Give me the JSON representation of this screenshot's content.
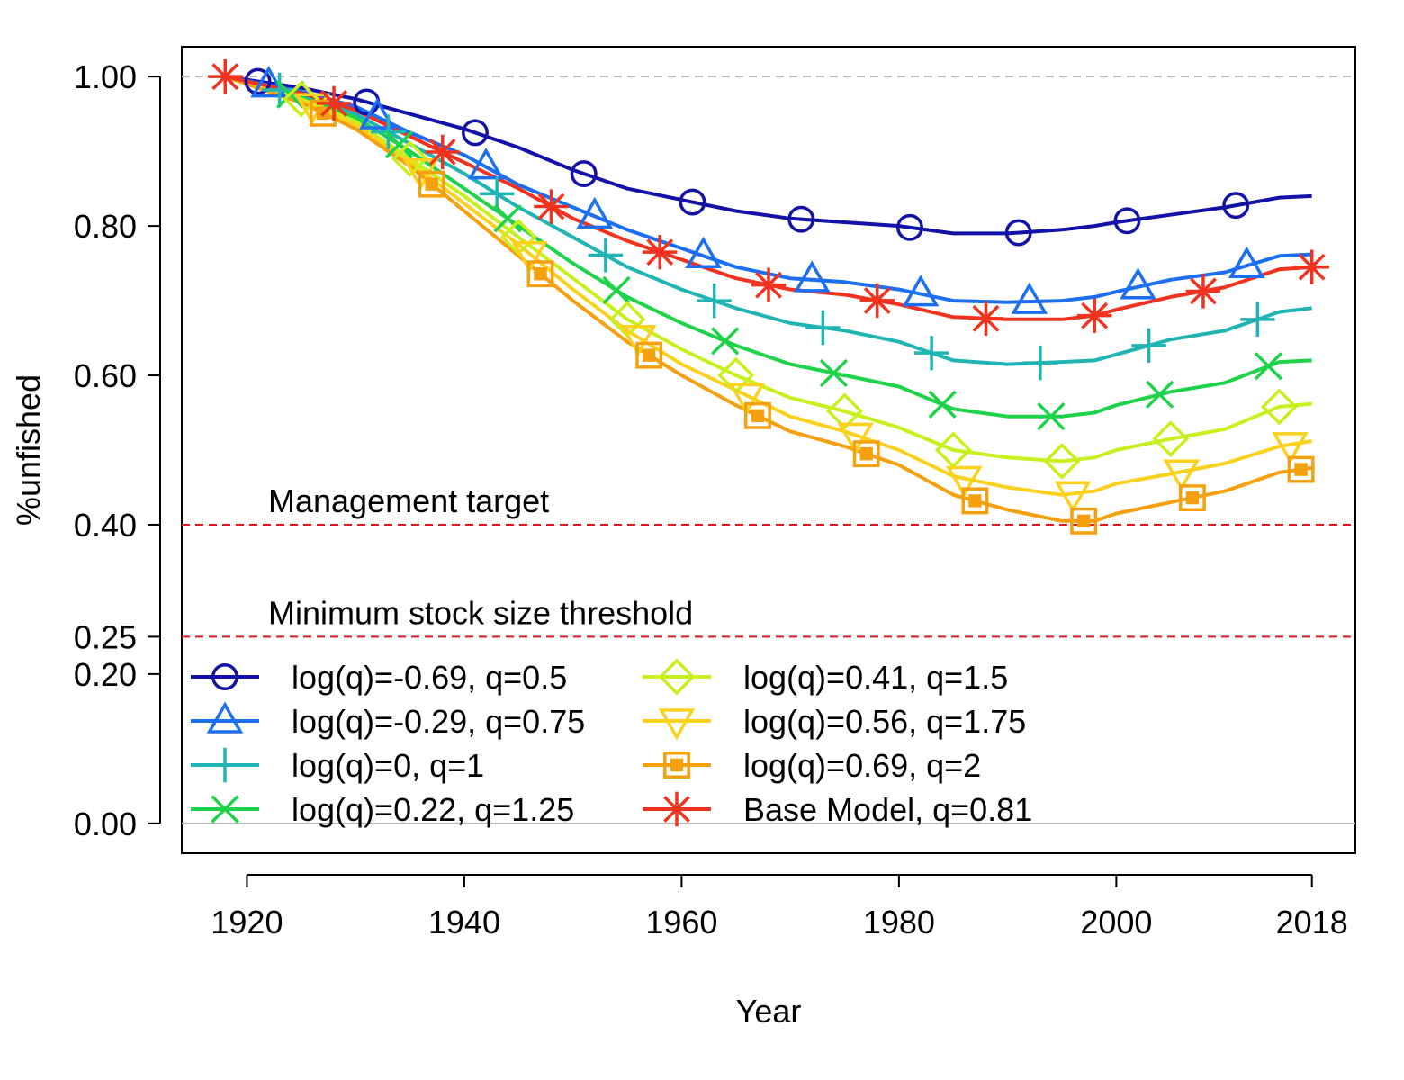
{
  "chart_data": {
    "type": "line",
    "xlabel": "Year",
    "ylabel": "%unfished",
    "xlim": [
      1914,
      2022
    ],
    "ylim": [
      -0.04,
      1.04
    ],
    "x_ticks": [
      {
        "value": 1920,
        "label": "1920"
      },
      {
        "value": 1940,
        "label": "1940"
      },
      {
        "value": 1960,
        "label": "1960"
      },
      {
        "value": 1980,
        "label": "1980"
      },
      {
        "value": 2000,
        "label": "2000"
      },
      {
        "value": 2018,
        "label": "2018"
      }
    ],
    "y_ticks": [
      {
        "value": 0.0,
        "label": "0.00"
      },
      {
        "value": 0.2,
        "label": "0.20"
      },
      {
        "value": 0.25,
        "label": "0.25"
      },
      {
        "value": 0.4,
        "label": "0.40"
      },
      {
        "value": 0.6,
        "label": "0.60"
      },
      {
        "value": 0.8,
        "label": "0.80"
      },
      {
        "value": 1.0,
        "label": "1.00"
      }
    ],
    "reference_lines": [
      {
        "y": 1.0,
        "color": "#bbbbbb",
        "style": "dashed",
        "label": ""
      },
      {
        "y": 0.4,
        "color": "#e8141a",
        "style": "dashed",
        "label": "Management target"
      },
      {
        "y": 0.25,
        "color": "#e8141a",
        "style": "dashed",
        "label": "Minimum stock size threshold"
      },
      {
        "y": 0.0,
        "color": "#bbbbbb",
        "style": "solid",
        "label": ""
      }
    ],
    "legend_position": "bottom-left",
    "years": [
      1918,
      1925,
      1930,
      1935,
      1940,
      1945,
      1950,
      1955,
      1960,
      1965,
      1970,
      1975,
      1980,
      1985,
      1990,
      1995,
      1998,
      2000,
      2005,
      2010,
      2015,
      2018
    ],
    "series": [
      {
        "name": "log(q)=-0.69, q=0.5",
        "color": "#1212a8",
        "marker": "circle",
        "values": [
          1.0,
          0.985,
          0.97,
          0.95,
          0.93,
          0.905,
          0.875,
          0.85,
          0.835,
          0.82,
          0.81,
          0.805,
          0.8,
          0.79,
          0.79,
          0.795,
          0.8,
          0.805,
          0.815,
          0.825,
          0.838,
          0.84
        ],
        "marker_x": [
          1921,
          1931,
          1941,
          1951,
          1961,
          1971,
          1981,
          1991,
          2001,
          2011
        ]
      },
      {
        "name": "log(q)=-0.29, q=0.75",
        "color": "#1c6ef2",
        "marker": "triangle-up",
        "values": [
          1.0,
          0.98,
          0.96,
          0.925,
          0.895,
          0.855,
          0.825,
          0.795,
          0.77,
          0.745,
          0.73,
          0.725,
          0.715,
          0.7,
          0.698,
          0.7,
          0.705,
          0.712,
          0.728,
          0.738,
          0.76,
          0.762
        ],
        "marker_x": [
          1922,
          1932,
          1942,
          1952,
          1962,
          1972,
          1982,
          1992,
          2002,
          2012
        ]
      },
      {
        "name": "log(q)=0, q=1",
        "color": "#20b4b4",
        "marker": "plus",
        "values": [
          1.0,
          0.975,
          0.95,
          0.91,
          0.87,
          0.825,
          0.785,
          0.745,
          0.715,
          0.69,
          0.67,
          0.66,
          0.645,
          0.62,
          0.615,
          0.618,
          0.62,
          0.628,
          0.648,
          0.66,
          0.685,
          0.69
        ],
        "marker_x": [
          1923,
          1933,
          1943,
          1953,
          1963,
          1973,
          1983,
          1993,
          2003,
          2013
        ]
      },
      {
        "name": "log(q)=0.22, q=1.25",
        "color": "#1ed24a",
        "marker": "x",
        "values": [
          1.0,
          0.972,
          0.945,
          0.9,
          0.85,
          0.8,
          0.75,
          0.705,
          0.67,
          0.64,
          0.615,
          0.6,
          0.585,
          0.555,
          0.545,
          0.545,
          0.55,
          0.56,
          0.578,
          0.59,
          0.618,
          0.62
        ],
        "marker_x": [
          1924,
          1934,
          1944,
          1954,
          1964,
          1974,
          1984,
          1994,
          2004,
          2014
        ]
      },
      {
        "name": "log(q)=0.41, q=1.5",
        "color": "#c8f01e",
        "marker": "diamond",
        "values": [
          1.0,
          0.97,
          0.94,
          0.89,
          0.84,
          0.785,
          0.73,
          0.675,
          0.635,
          0.6,
          0.57,
          0.552,
          0.53,
          0.5,
          0.49,
          0.485,
          0.49,
          0.5,
          0.515,
          0.528,
          0.558,
          0.562
        ],
        "marker_x": [
          1925,
          1935,
          1945,
          1955,
          1965,
          1975,
          1985,
          1995,
          2005,
          2015
        ]
      },
      {
        "name": "log(q)=0.56, q=1.75",
        "color": "#fad21e",
        "marker": "triangle-down",
        "values": [
          1.0,
          0.968,
          0.935,
          0.885,
          0.83,
          0.775,
          0.715,
          0.66,
          0.615,
          0.58,
          0.545,
          0.525,
          0.5,
          0.465,
          0.45,
          0.44,
          0.445,
          0.455,
          0.468,
          0.482,
          0.505,
          0.512
        ],
        "marker_x": [
          1926,
          1936,
          1946,
          1956,
          1966,
          1976,
          1986,
          1996,
          2006,
          2016
        ]
      },
      {
        "name": "log(q)=0.69, q=2",
        "color": "#f5a00f",
        "marker": "square",
        "values": [
          1.0,
          0.965,
          0.93,
          0.88,
          0.82,
          0.76,
          0.7,
          0.645,
          0.6,
          0.56,
          0.525,
          0.505,
          0.48,
          0.44,
          0.42,
          0.405,
          0.405,
          0.415,
          0.43,
          0.445,
          0.47,
          0.476
        ],
        "marker_x": [
          1927,
          1937,
          1947,
          1957,
          1967,
          1977,
          1987,
          1997,
          2007,
          2017
        ]
      },
      {
        "name": "Base Model, q=0.81",
        "color": "#f0321e",
        "marker": "asterisk",
        "values": [
          1.0,
          0.978,
          0.955,
          0.92,
          0.885,
          0.85,
          0.81,
          0.78,
          0.755,
          0.73,
          0.715,
          0.708,
          0.695,
          0.678,
          0.675,
          0.675,
          0.68,
          0.688,
          0.705,
          0.718,
          0.742,
          0.745
        ],
        "marker_x": [
          1918,
          1928,
          1938,
          1948,
          1958,
          1968,
          1978,
          1988,
          1998,
          2008,
          2018
        ]
      }
    ]
  }
}
